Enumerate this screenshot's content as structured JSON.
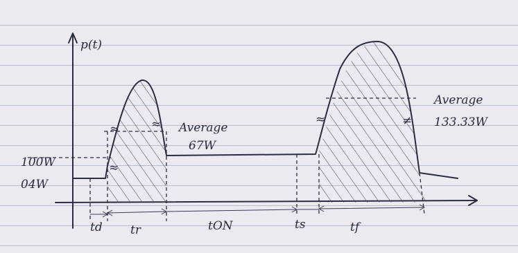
{
  "axis_label": "p(t)",
  "levels": [
    {
      "label": "100W"
    },
    {
      "label": "04W"
    }
  ],
  "annotations": [
    {
      "title": "Average",
      "value": "67W"
    },
    {
      "title": "Average",
      "value": "133.33W"
    }
  ],
  "intervals": [
    {
      "label": "td"
    },
    {
      "label": "tr"
    },
    {
      "label": "tON"
    },
    {
      "label": "ts"
    },
    {
      "label": "tf"
    }
  ]
}
